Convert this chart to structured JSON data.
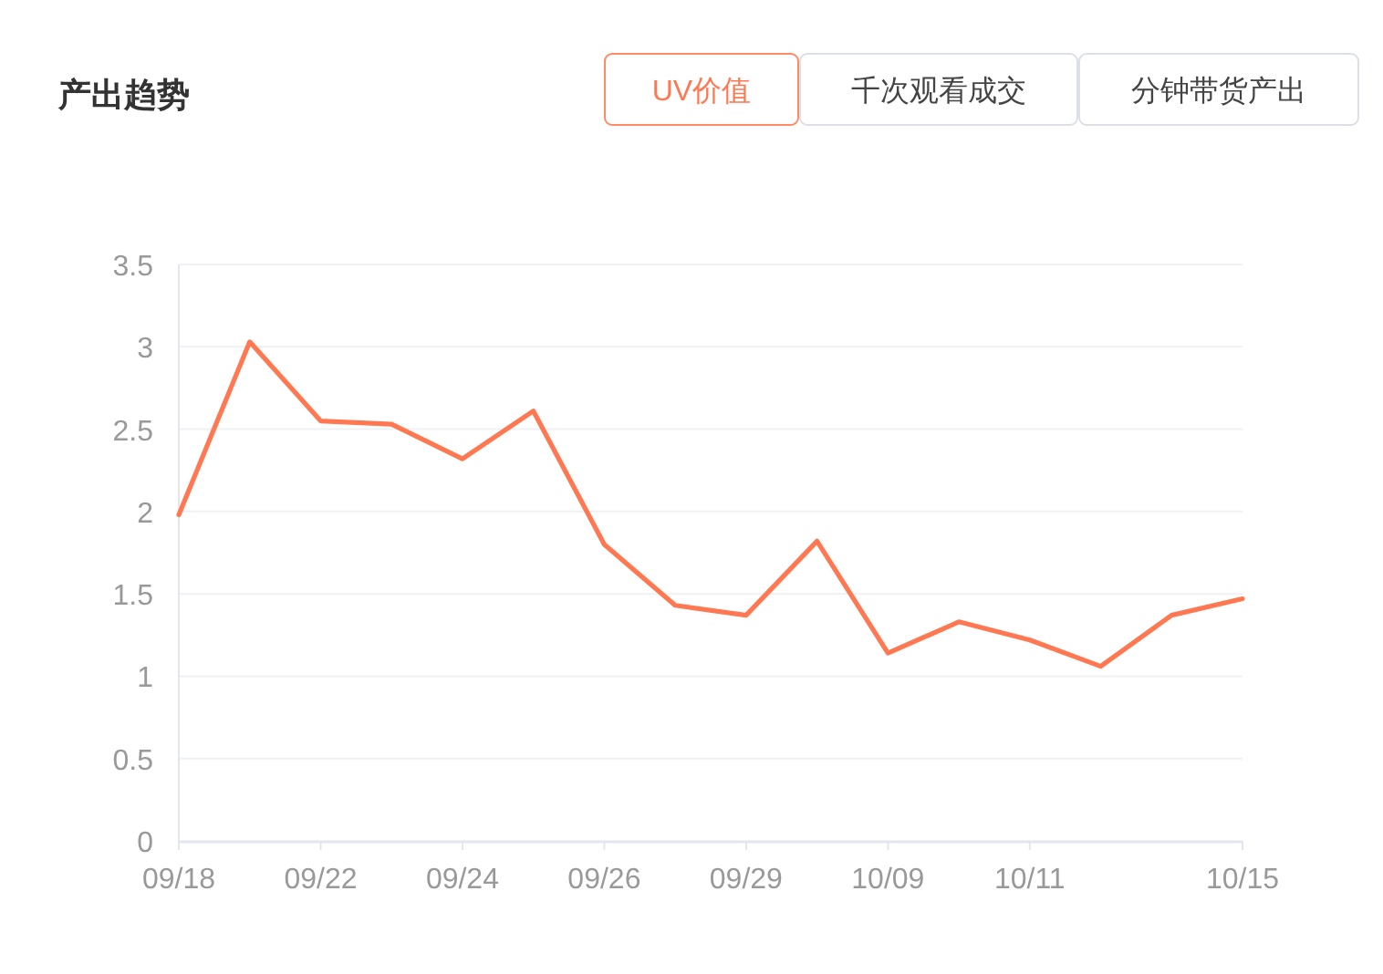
{
  "chart_data": {
    "type": "line",
    "title": "产出趋势",
    "annotations": [
      "UV价值",
      "千次观看成交",
      "分钟带货产出"
    ],
    "categories": [
      "09/18",
      null,
      "09/22",
      null,
      "09/24",
      null,
      "09/26",
      null,
      "09/29",
      null,
      "10/09",
      null,
      "10/11",
      null,
      null,
      "10/15"
    ],
    "series": [
      {
        "color": "#ff7851",
        "values": [
          1.98,
          3.03,
          2.55,
          2.53,
          2.32,
          2.61,
          1.8,
          1.43,
          1.37,
          1.82,
          1.14,
          1.33,
          1.22,
          1.06,
          1.37,
          1.47
        ]
      }
    ],
    "ylim": [
      0,
      3.5
    ],
    "yticks": [
      0,
      0.5,
      1,
      1.5,
      2,
      2.5,
      3,
      3.5
    ],
    "grid": "y"
  }
}
